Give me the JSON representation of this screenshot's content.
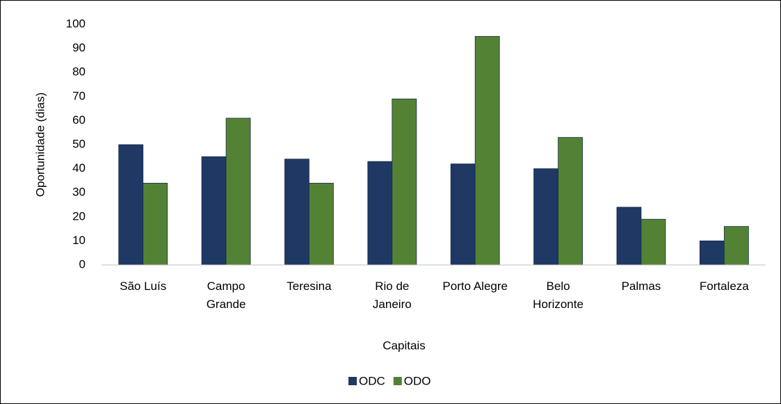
{
  "chart_data": {
    "type": "bar",
    "categories": [
      "São Luís",
      "Campo Grande",
      "Teresina",
      "Rio de Janeiro",
      "Porto Alegre",
      "Belo Horizonte",
      "Palmas",
      "Fortaleza"
    ],
    "series": [
      {
        "name": "ODC",
        "color": "#203864",
        "values": [
          50,
          45,
          44,
          43,
          42,
          40,
          24,
          10
        ]
      },
      {
        "name": "ODO",
        "color": "#548235",
        "values": [
          34,
          61,
          34,
          69,
          95,
          53,
          19,
          16
        ]
      }
    ],
    "x_label": "Capitais",
    "y_label": "Oportunidade (dias)",
    "ylim": [
      0,
      100
    ],
    "yticks": [
      0,
      10,
      20,
      30,
      40,
      50,
      60,
      70,
      80,
      90,
      100
    ],
    "grid": false,
    "legend": "bottom"
  }
}
